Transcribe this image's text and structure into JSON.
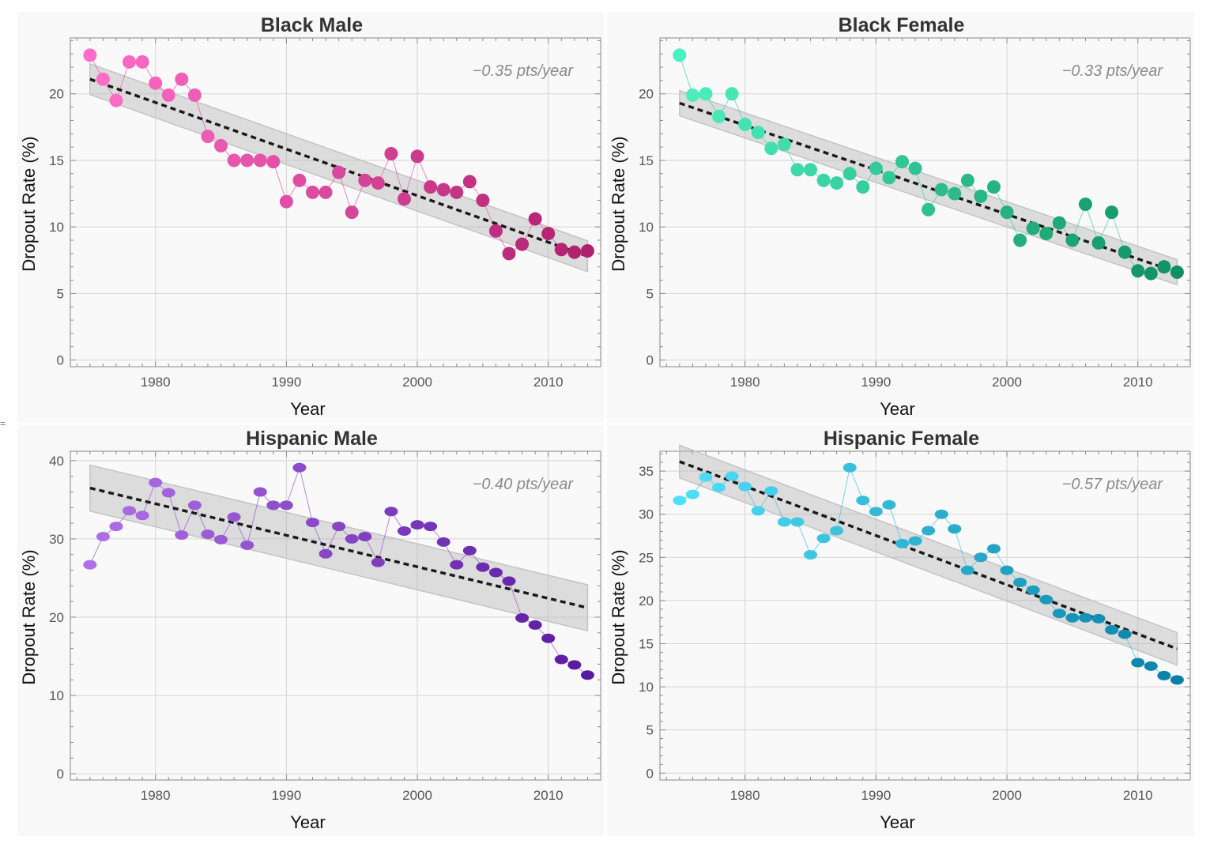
{
  "chart_data": [
    {
      "type": "scatter",
      "title": "Black Male",
      "xlabel": "Year",
      "ylabel": "Dropout Rate (%)",
      "xlim": [
        1973.5,
        2014
      ],
      "ylim": [
        -0.5,
        24.2
      ],
      "xticks": [
        1980,
        1990,
        2000,
        2010
      ],
      "yticks": [
        0,
        5,
        10,
        15,
        20
      ],
      "annotation": "−0.35 pts/year",
      "color_start": "#ff6ec8",
      "color_end": "#b0206e",
      "marker": "circle",
      "fit": {
        "y_start": 21.1,
        "y_end": 7.8,
        "band": 1.1
      },
      "x": [
        1975,
        1976,
        1977,
        1978,
        1979,
        1980,
        1981,
        1982,
        1983,
        1984,
        1985,
        1986,
        1987,
        1988,
        1989,
        1990,
        1991,
        1992,
        1993,
        1994,
        1995,
        1996,
        1997,
        1998,
        1999,
        2000,
        2001,
        2002,
        2003,
        2004,
        2005,
        2006,
        2007,
        2008,
        2009,
        2010,
        2011,
        2012,
        2013
      ],
      "y": [
        22.9,
        21.1,
        19.5,
        22.4,
        22.4,
        20.8,
        19.9,
        21.1,
        19.9,
        16.8,
        16.1,
        15.0,
        15.0,
        15.0,
        14.9,
        11.9,
        13.5,
        12.6,
        12.6,
        14.1,
        11.1,
        13.5,
        13.3,
        15.5,
        12.1,
        15.3,
        13.0,
        12.8,
        12.6,
        13.4,
        12.0,
        9.7,
        8.0,
        8.7,
        10.6,
        9.5,
        8.3,
        8.1,
        8.2
      ]
    },
    {
      "type": "scatter",
      "title": "Black Female",
      "xlabel": "Year",
      "ylabel": "Dropout Rate (%)",
      "xlim": [
        1973.5,
        2014
      ],
      "ylim": [
        -0.5,
        24.2
      ],
      "xticks": [
        1980,
        1990,
        2000,
        2010
      ],
      "yticks": [
        0,
        5,
        10,
        15,
        20
      ],
      "annotation": "−0.33 pts/year",
      "color_start": "#4df0c0",
      "color_end": "#109060",
      "marker": "circle",
      "fit": {
        "y_start": 19.3,
        "y_end": 6.6,
        "band": 0.9
      },
      "x": [
        1975,
        1976,
        1977,
        1978,
        1979,
        1980,
        1981,
        1982,
        1983,
        1984,
        1985,
        1986,
        1987,
        1988,
        1989,
        1990,
        1991,
        1992,
        1993,
        1994,
        1995,
        1996,
        1997,
        1998,
        1999,
        2000,
        2001,
        2002,
        2003,
        2004,
        2005,
        2006,
        2007,
        2008,
        2009,
        2010,
        2011,
        2012,
        2013
      ],
      "y": [
        22.9,
        19.9,
        20.0,
        18.3,
        20.0,
        17.7,
        17.1,
        15.9,
        16.2,
        14.3,
        14.3,
        13.5,
        13.3,
        14.0,
        13.0,
        14.4,
        13.7,
        14.9,
        14.4,
        11.3,
        12.8,
        12.5,
        13.5,
        12.3,
        13.0,
        11.1,
        9.0,
        9.9,
        9.5,
        10.3,
        9.0,
        11.7,
        8.8,
        11.1,
        8.1,
        6.7,
        6.5,
        7.0,
        6.6
      ]
    },
    {
      "type": "scatter",
      "title": "Hispanic Male",
      "xlabel": "Year",
      "ylabel": "Dropout Rate (%)",
      "xlim": [
        1973.5,
        2014
      ],
      "ylim": [
        -0.8,
        41.2
      ],
      "xticks": [
        1980,
        1990,
        2000,
        2010
      ],
      "yticks": [
        0,
        10,
        20,
        30,
        40
      ],
      "annotation": "−0.40 pts/year",
      "color_start": "#b070e8",
      "color_end": "#5a1aa0",
      "marker": "ellipse",
      "fit": {
        "y_start": 36.5,
        "y_end": 21.2,
        "band": 2.8
      },
      "x": [
        1975,
        1976,
        1977,
        1978,
        1979,
        1980,
        1981,
        1982,
        1983,
        1984,
        1985,
        1986,
        1987,
        1988,
        1989,
        1990,
        1991,
        1992,
        1993,
        1994,
        1995,
        1996,
        1997,
        1998,
        1999,
        2000,
        2001,
        2002,
        2003,
        2004,
        2005,
        2006,
        2007,
        2008,
        2009,
        2010,
        2011,
        2012,
        2013
      ],
      "y": [
        26.7,
        30.3,
        31.6,
        33.6,
        33.0,
        37.2,
        35.9,
        30.5,
        34.3,
        30.6,
        29.9,
        32.8,
        29.2,
        36.0,
        34.3,
        34.3,
        39.1,
        32.1,
        28.1,
        31.6,
        30.0,
        30.3,
        27.0,
        33.5,
        31.0,
        31.8,
        31.6,
        29.6,
        26.7,
        28.5,
        26.4,
        25.7,
        24.6,
        19.9,
        19.0,
        17.3,
        14.6,
        13.9,
        12.6
      ]
    },
    {
      "type": "scatter",
      "title": "Hispanic Female",
      "xlabel": "Year",
      "ylabel": "Dropout Rate (%)",
      "xlim": [
        1973.5,
        2014
      ],
      "ylim": [
        -0.8,
        37.3
      ],
      "xticks": [
        1980,
        1990,
        2000,
        2010
      ],
      "yticks": [
        0,
        5,
        10,
        15,
        20,
        25,
        30,
        35
      ],
      "annotation": "−0.57 pts/year",
      "color_start": "#50e0f8",
      "color_end": "#0a80a8",
      "marker": "ellipse",
      "fit": {
        "y_start": 36.1,
        "y_end": 14.4,
        "band": 1.8
      },
      "x": [
        1975,
        1976,
        1977,
        1978,
        1979,
        1980,
        1981,
        1982,
        1983,
        1984,
        1985,
        1986,
        1987,
        1988,
        1989,
        1990,
        1991,
        1992,
        1993,
        1994,
        1995,
        1996,
        1997,
        1998,
        1999,
        2000,
        2001,
        2002,
        2003,
        2004,
        2005,
        2006,
        2007,
        2008,
        2009,
        2010,
        2011,
        2012,
        2013
      ],
      "y": [
        31.6,
        32.3,
        34.3,
        33.1,
        34.4,
        33.2,
        30.4,
        32.7,
        29.1,
        29.1,
        25.3,
        27.2,
        28.1,
        35.4,
        31.6,
        30.3,
        31.1,
        26.6,
        26.9,
        28.1,
        30.0,
        28.3,
        23.5,
        25.0,
        26.0,
        23.5,
        22.1,
        21.2,
        20.1,
        18.5,
        18.0,
        18.0,
        17.9,
        16.6,
        16.1,
        12.8,
        12.4,
        11.3,
        10.8
      ]
    }
  ]
}
